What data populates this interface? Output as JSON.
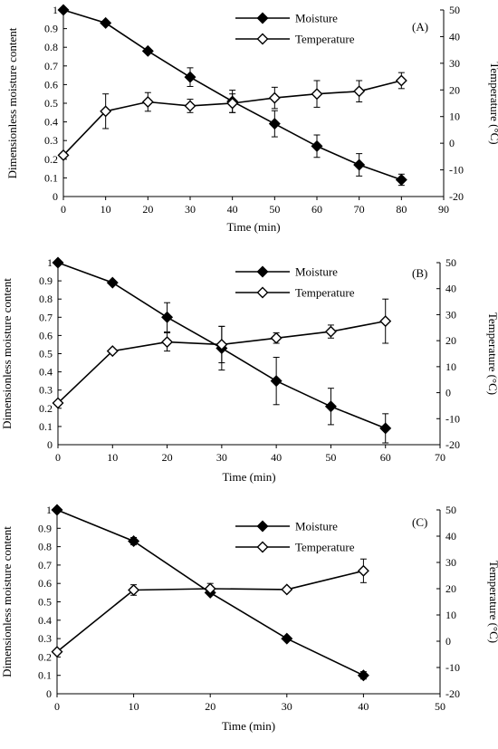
{
  "chart_data": [
    {
      "type": "line",
      "panel_label": "(A)",
      "xlabel": "Time (min)",
      "ylabel_left": "Dimensionless moisture content",
      "ylabel_right": "Temperature (°C)",
      "xlim": [
        0,
        90
      ],
      "xticks": [
        0,
        10,
        20,
        30,
        40,
        50,
        60,
        70,
        80,
        90
      ],
      "ylim_left": [
        0,
        1
      ],
      "yticks_left": [
        0,
        0.1,
        0.2,
        0.3,
        0.4,
        0.5,
        0.6,
        0.7,
        0.8,
        0.9,
        1
      ],
      "ylim_right": [
        -20,
        50
      ],
      "yticks_right": [
        -20,
        -10,
        0,
        10,
        20,
        30,
        40,
        50
      ],
      "grid": false,
      "legend_position": "top-right",
      "series": [
        {
          "name": "Moisture",
          "axis": "left",
          "marker": "filled-diamond",
          "x": [
            0,
            10,
            20,
            30,
            40,
            50,
            60,
            70,
            80
          ],
          "y": [
            1.0,
            0.93,
            0.78,
            0.64,
            0.51,
            0.39,
            0.27,
            0.17,
            0.09
          ],
          "err": [
            0,
            0.01,
            0.01,
            0.05,
            0.06,
            0.07,
            0.06,
            0.06,
            0.03
          ]
        },
        {
          "name": "Temperature",
          "axis": "right",
          "marker": "open-diamond",
          "x": [
            0,
            10,
            20,
            30,
            40,
            50,
            60,
            70,
            80
          ],
          "y": [
            -4.5,
            12.0,
            15.5,
            14.0,
            15.0,
            17.0,
            18.5,
            19.5,
            23.5
          ],
          "err": [
            0,
            6.5,
            3.5,
            2.5,
            3.5,
            4.0,
            5.0,
            4.0,
            3.0
          ]
        }
      ]
    },
    {
      "type": "line",
      "panel_label": "(B)",
      "xlabel": "Time (min)",
      "ylabel_left": "Dimensionless moisture content",
      "ylabel_right": "Temperature (°C)",
      "xlim": [
        0,
        70
      ],
      "xticks": [
        0,
        10,
        20,
        30,
        40,
        50,
        60,
        70
      ],
      "ylim_left": [
        0,
        1
      ],
      "yticks_left": [
        0,
        0.1,
        0.2,
        0.3,
        0.4,
        0.5,
        0.6,
        0.7,
        0.8,
        0.9,
        1
      ],
      "ylim_right": [
        -20,
        50
      ],
      "yticks_right": [
        -20,
        -10,
        0,
        10,
        20,
        30,
        40,
        50
      ],
      "grid": false,
      "legend_position": "top-right",
      "series": [
        {
          "name": "Moisture",
          "axis": "left",
          "marker": "filled-diamond",
          "x": [
            0,
            10,
            20,
            30,
            40,
            50,
            60
          ],
          "y": [
            1.0,
            0.89,
            0.7,
            0.53,
            0.35,
            0.21,
            0.09
          ],
          "err": [
            0,
            0.01,
            0.08,
            0.12,
            0.13,
            0.1,
            0.08
          ]
        },
        {
          "name": "Temperature",
          "axis": "right",
          "marker": "open-diamond",
          "x": [
            0,
            10,
            20,
            30,
            40,
            50,
            60
          ],
          "y": [
            -4.0,
            16.0,
            19.5,
            18.5,
            21.0,
            23.5,
            27.5
          ],
          "err": [
            0,
            0,
            3.5,
            7.0,
            2.0,
            2.5,
            8.5
          ]
        }
      ]
    },
    {
      "type": "line",
      "panel_label": "(C)",
      "xlabel": "Time (min)",
      "ylabel_left": "Dimensionless moisture content",
      "ylabel_right": "Temperature (°C)",
      "xlim": [
        0,
        50
      ],
      "xticks": [
        0,
        10,
        20,
        30,
        40,
        50
      ],
      "ylim_left": [
        0,
        1
      ],
      "yticks_left": [
        0,
        0.1,
        0.2,
        0.3,
        0.4,
        0.5,
        0.6,
        0.7,
        0.8,
        0.9,
        1
      ],
      "ylim_right": [
        -20,
        50
      ],
      "yticks_right": [
        -20,
        -10,
        0,
        10,
        20,
        30,
        40,
        50
      ],
      "grid": false,
      "legend_position": "top-right",
      "series": [
        {
          "name": "Moisture",
          "axis": "left",
          "marker": "filled-diamond",
          "x": [
            0,
            10,
            20,
            30,
            40
          ],
          "y": [
            1.0,
            0.83,
            0.55,
            0.3,
            0.1
          ],
          "err": [
            0,
            0.02,
            0.01,
            0,
            0.02
          ]
        },
        {
          "name": "Temperature",
          "axis": "right",
          "marker": "open-diamond",
          "x": [
            0,
            10,
            20,
            30,
            40
          ],
          "y": [
            -4.0,
            19.5,
            20.0,
            19.7,
            26.8
          ],
          "err": [
            0,
            2.0,
            2.0,
            0,
            4.5
          ]
        }
      ]
    }
  ]
}
